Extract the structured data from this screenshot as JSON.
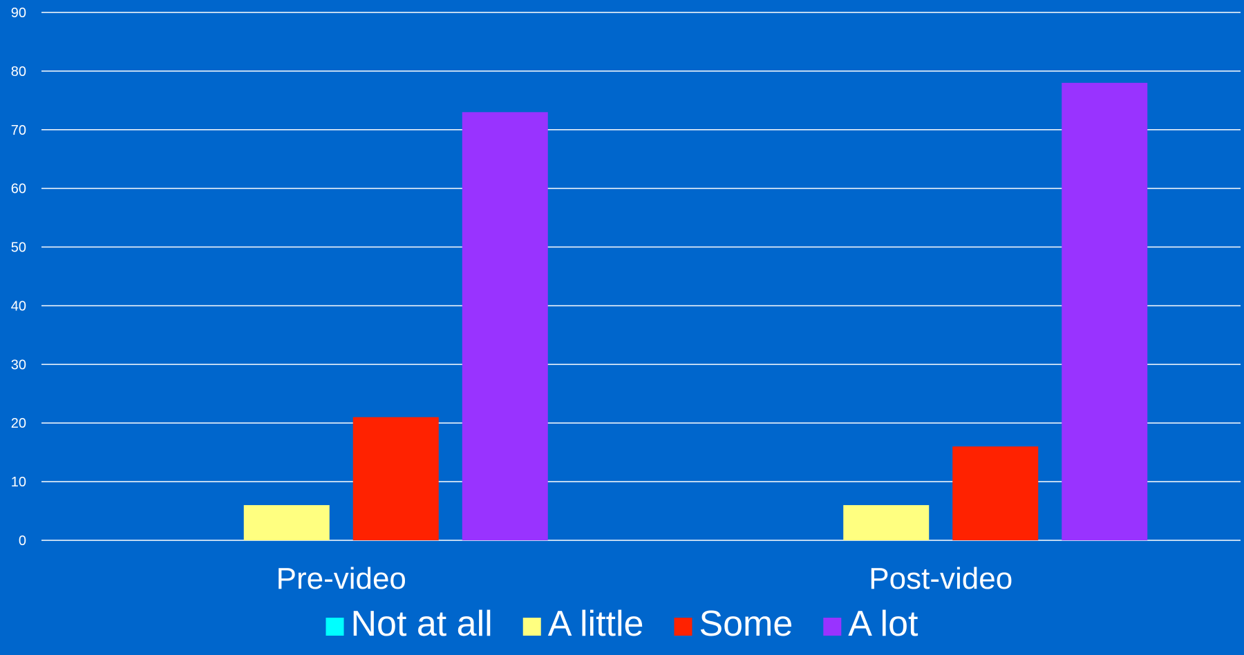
{
  "chart_data": {
    "type": "bar",
    "categories": [
      "Pre-video",
      "Post-video"
    ],
    "series": [
      {
        "name": "Not at all",
        "values": [
          0,
          0
        ],
        "color": "#00FFFF"
      },
      {
        "name": "A little",
        "values": [
          6,
          6
        ],
        "color": "#FFFF80"
      },
      {
        "name": "Some",
        "values": [
          21,
          16
        ],
        "color": "#FF2200"
      },
      {
        "name": "A lot",
        "values": [
          73,
          78
        ],
        "color": "#9933FF"
      }
    ],
    "ylim": [
      0,
      90
    ],
    "yticks": [
      0,
      10,
      20,
      30,
      40,
      50,
      60,
      70,
      80,
      90
    ],
    "title": "",
    "xlabel": "",
    "ylabel": "",
    "grid": true,
    "legend_position": "bottom",
    "background_color": "#0066CC",
    "grid_color": "#FFFFFF"
  }
}
